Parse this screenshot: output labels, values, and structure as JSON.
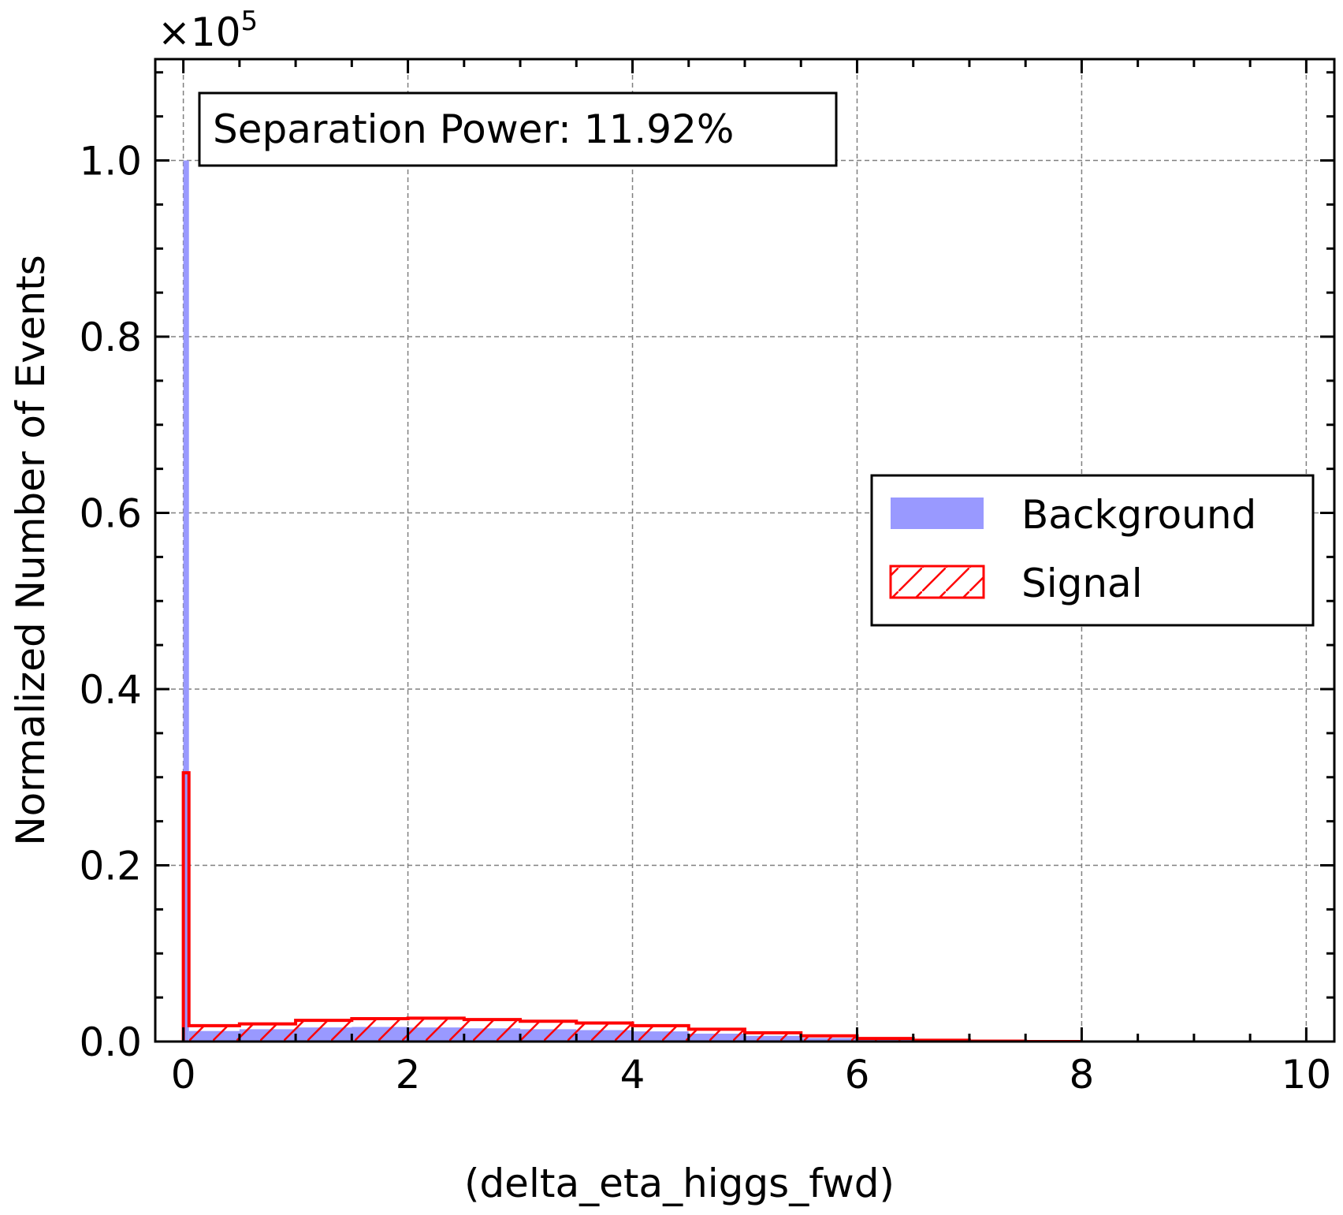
{
  "chart_data": {
    "type": "histogram",
    "xlabel": "(delta_eta_higgs_fwd)",
    "ylabel": "Normalized Number of Events",
    "y_multiplier_label": "×10",
    "y_multiplier_exponent": "5",
    "xlim": [
      -0.25,
      10.25
    ],
    "ylim": [
      0,
      111500
    ],
    "x_ticks": [
      0,
      2,
      4,
      6,
      8,
      10
    ],
    "x_tick_labels": [
      "0",
      "2",
      "4",
      "6",
      "8",
      "10"
    ],
    "y_ticks": [
      0,
      20000,
      40000,
      60000,
      80000,
      100000
    ],
    "y_tick_labels": [
      "0.0",
      "0.2",
      "0.4",
      "0.6",
      "0.8",
      "1.0"
    ],
    "grid": true,
    "bin_width": 0.05,
    "annotation": "Separation Power: 11.92%",
    "legend": {
      "placement": "center-right",
      "entries": [
        {
          "label": "Background",
          "color": "#9999ff",
          "style": "filled"
        },
        {
          "label": "Signal",
          "color": "#ff0000",
          "style": "hatched"
        }
      ]
    },
    "series": [
      {
        "name": "Background",
        "color": "#9999ff",
        "spike": {
          "x": 0.0,
          "value": 100000
        },
        "continuum": {
          "x": [
            0.05,
            0.5,
            1.0,
            1.5,
            2.0,
            2.5,
            3.0,
            3.5,
            4.0,
            4.5,
            5.0,
            5.5,
            6.0,
            6.5,
            7.0
          ],
          "values": [
            1200,
            1400,
            1600,
            1650,
            1600,
            1500,
            1400,
            1300,
            1150,
            900,
            650,
            400,
            200,
            80,
            20
          ]
        }
      },
      {
        "name": "Signal",
        "color": "#ff0000",
        "spike": {
          "x": 0.0,
          "value": 30500
        },
        "continuum": {
          "x": [
            0.05,
            0.5,
            1.0,
            1.5,
            2.0,
            2.5,
            3.0,
            3.5,
            4.0,
            4.5,
            5.0,
            5.5,
            6.0,
            6.5,
            7.0,
            7.5
          ],
          "values": [
            1800,
            2000,
            2400,
            2600,
            2650,
            2500,
            2300,
            2100,
            1800,
            1400,
            1000,
            650,
            350,
            150,
            50,
            0
          ]
        }
      }
    ]
  }
}
